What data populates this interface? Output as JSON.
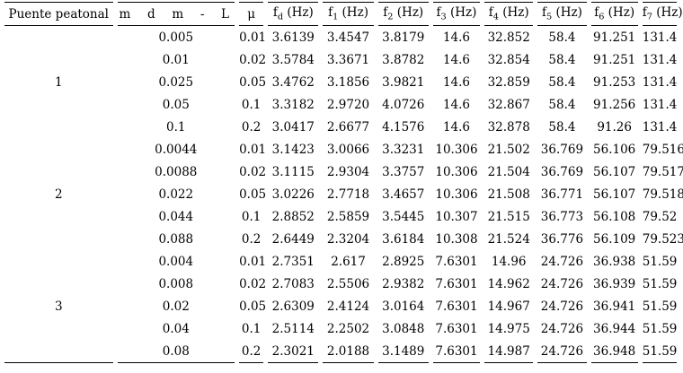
{
  "table": {
    "columns": [
      {
        "kind": "text",
        "id": "puente",
        "label": "Puente peatonal"
      },
      {
        "kind": "tokens",
        "id": "md-mL",
        "tokens": [
          "m",
          "d",
          "m",
          "-",
          "L"
        ]
      },
      {
        "kind": "text",
        "id": "mu",
        "label": "μ"
      },
      {
        "kind": "sub",
        "id": "fd",
        "base": "f",
        "sub": "d",
        "unit": "(Hz)"
      },
      {
        "kind": "sub",
        "id": "f1",
        "base": "f",
        "sub": "1",
        "unit": "(Hz)"
      },
      {
        "kind": "sub",
        "id": "f2",
        "base": "f",
        "sub": "2",
        "unit": "(Hz)"
      },
      {
        "kind": "sub",
        "id": "f3",
        "base": "f",
        "sub": "3",
        "unit": "(Hz)"
      },
      {
        "kind": "sub",
        "id": "f4",
        "base": "f",
        "sub": "4",
        "unit": "(Hz)"
      },
      {
        "kind": "sub",
        "id": "f5",
        "base": "f",
        "sub": "5",
        "unit": "(Hz)"
      },
      {
        "kind": "sub",
        "id": "f6",
        "base": "f",
        "sub": "6",
        "unit": "(Hz)"
      },
      {
        "kind": "sub",
        "id": "f7",
        "base": "f",
        "sub": "7",
        "unit": "(Hz)"
      }
    ],
    "groups": [
      {
        "bridge": "1",
        "rows": [
          {
            "mL": "0.005",
            "mu": "0.01",
            "f": [
              "3.6139",
              "3.4547",
              "3.8179",
              "14.6",
              "32.852",
              "58.4",
              "91.251",
              "131.4"
            ]
          },
          {
            "mL": "0.01",
            "mu": "0.02",
            "f": [
              "3.5784",
              "3.3671",
              "3.8782",
              "14.6",
              "32.854",
              "58.4",
              "91.251",
              "131.4"
            ]
          },
          {
            "mL": "0.025",
            "mu": "0.05",
            "f": [
              "3.4762",
              "3.1856",
              "3.9821",
              "14.6",
              "32.859",
              "58.4",
              "91.253",
              "131.4"
            ]
          },
          {
            "mL": "0.05",
            "mu": "0.1",
            "f": [
              "3.3182",
              "2.9720",
              "4.0726",
              "14.6",
              "32.867",
              "58.4",
              "91.256",
              "131.4"
            ]
          },
          {
            "mL": "0.1",
            "mu": "0.2",
            "f": [
              "3.0417",
              "2.6677",
              "4.1576",
              "14.6",
              "32.878",
              "58.4",
              "91.26",
              "131.4"
            ]
          }
        ]
      },
      {
        "bridge": "2",
        "rows": [
          {
            "mL": "0.0044",
            "mu": "0.01",
            "f": [
              "3.1423",
              "3.0066",
              "3.3231",
              "10.306",
              "21.502",
              "36.769",
              "56.106",
              "79.516"
            ]
          },
          {
            "mL": "0.0088",
            "mu": "0.02",
            "f": [
              "3.1115",
              "2.9304",
              "3.3757",
              "10.306",
              "21.504",
              "36.769",
              "56.107",
              "79.517"
            ]
          },
          {
            "mL": "0.022",
            "mu": "0.05",
            "f": [
              "3.0226",
              "2.7718",
              "3.4657",
              "10.306",
              "21.508",
              "36.771",
              "56.107",
              "79.518"
            ]
          },
          {
            "mL": "0.044",
            "mu": "0.1",
            "f": [
              "2.8852",
              "2.5859",
              "3.5445",
              "10.307",
              "21.515",
              "36.773",
              "56.108",
              "79.52"
            ]
          },
          {
            "mL": "0.088",
            "mu": "0.2",
            "f": [
              "2.6449",
              "2.3204",
              "3.6184",
              "10.308",
              "21.524",
              "36.776",
              "56.109",
              "79.523"
            ]
          }
        ]
      },
      {
        "bridge": "3",
        "rows": [
          {
            "mL": "0.004",
            "mu": "0.01",
            "f": [
              "2.7351",
              "2.617",
              "2.8925",
              "7.6301",
              "14.96",
              "24.726",
              "36.938",
              "51.59"
            ]
          },
          {
            "mL": "0.008",
            "mu": "0.02",
            "f": [
              "2.7083",
              "2.5506",
              "2.9382",
              "7.6301",
              "14.962",
              "24.726",
              "36.939",
              "51.59"
            ]
          },
          {
            "mL": "0.02",
            "mu": "0.05",
            "f": [
              "2.6309",
              "2.4124",
              "3.0164",
              "7.6301",
              "14.967",
              "24.726",
              "36.941",
              "51.59"
            ]
          },
          {
            "mL": "0.04",
            "mu": "0.1",
            "f": [
              "2.5114",
              "2.2502",
              "3.0848",
              "7.6301",
              "14.975",
              "24.726",
              "36.944",
              "51.59"
            ]
          },
          {
            "mL": "0.08",
            "mu": "0.2",
            "f": [
              "2.3021",
              "2.0188",
              "3.1489",
              "7.6301",
              "14.987",
              "24.726",
              "36.948",
              "51.59"
            ]
          }
        ]
      }
    ]
  }
}
